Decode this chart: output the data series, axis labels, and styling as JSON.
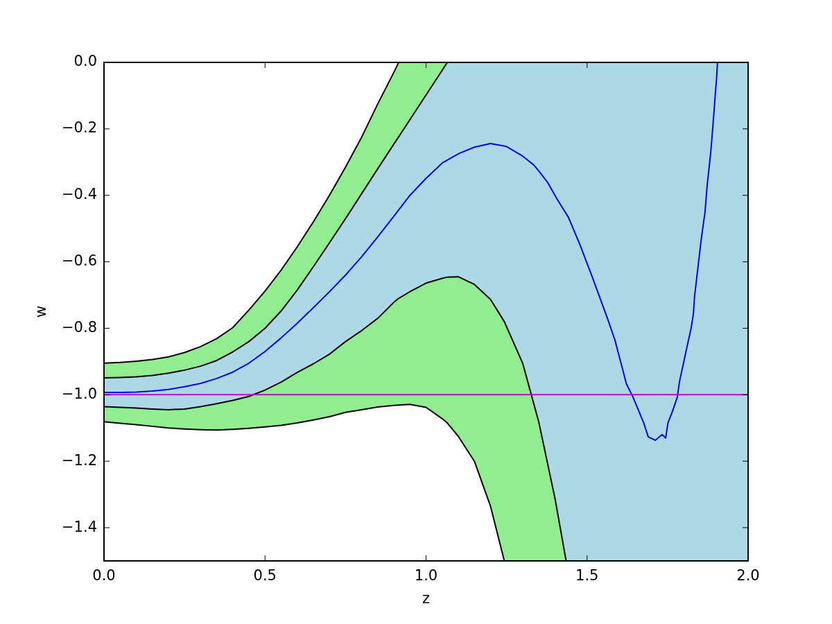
{
  "chart_data": {
    "type": "line",
    "xlabel": "z",
    "ylabel": "w",
    "xlim": [
      0,
      2
    ],
    "ylim": [
      -1.5,
      0
    ],
    "xticks": [
      {
        "value": 0,
        "label": "0.0"
      },
      {
        "value": 0.5,
        "label": "0.5"
      },
      {
        "value": 1,
        "label": "1.0"
      },
      {
        "value": 1.5,
        "label": "1.5"
      },
      {
        "value": 2,
        "label": "2.0"
      }
    ],
    "yticks": [
      {
        "value": -1.4,
        "label": "−1.4"
      },
      {
        "value": -1.2,
        "label": "−1.2"
      },
      {
        "value": -1,
        "label": "−1.0"
      },
      {
        "value": -0.8,
        "label": "−0.8"
      },
      {
        "value": -0.6,
        "label": "−0.6"
      },
      {
        "value": -0.4,
        "label": "−0.4"
      },
      {
        "value": -0.2,
        "label": "−0.2"
      },
      {
        "value": 0,
        "label": "0.0"
      }
    ],
    "x": [
      0,
      0.05,
      0.1,
      0.15,
      0.2,
      0.25,
      0.3,
      0.35,
      0.4,
      0.45,
      0.5,
      0.55,
      0.6,
      0.65,
      0.7,
      0.75,
      0.8,
      0.85,
      0.9,
      0.915,
      0.95,
      1.0,
      1.05,
      1.066,
      1.1,
      1.15,
      1.2,
      1.243,
      1.3,
      1.35,
      1.4,
      1.435,
      2.0
    ],
    "series": [
      {
        "color": "#90ee90",
        "values": [
          null,
          null,
          null,
          null,
          null,
          null,
          null,
          null,
          null,
          null,
          null,
          null,
          null,
          null,
          null,
          null,
          null,
          null,
          null,
          null,
          null,
          null,
          null,
          null,
          null,
          null,
          null,
          null,
          null,
          null,
          null,
          null,
          null
        ],
        "upper": [
          -0.905,
          -0.903,
          -0.899,
          -0.894,
          -0.886,
          -0.873,
          -0.855,
          -0.831,
          -0.798,
          -0.745,
          -0.688,
          -0.625,
          -0.555,
          -0.48,
          -0.4,
          -0.315,
          -0.225,
          -0.125,
          -0.03,
          0,
          0,
          0,
          0,
          0,
          0,
          0,
          0,
          0,
          0,
          0,
          0,
          0,
          0
        ],
        "lower": [
          -0.949,
          -0.948,
          -0.946,
          -0.942,
          -0.935,
          -0.926,
          -0.914,
          -0.897,
          -0.871,
          -0.84,
          -0.8,
          -0.748,
          -0.685,
          -0.615,
          -0.543,
          -0.47,
          -0.395,
          -0.32,
          -0.246,
          -0.224,
          -0.172,
          -0.098,
          -0.024,
          0,
          0,
          0,
          0,
          0,
          0,
          0,
          0,
          0,
          0
        ]
      },
      {
        "color": "#add8e6",
        "values": [
          null,
          null,
          null,
          null,
          null,
          null,
          null,
          null,
          null,
          null,
          null,
          null,
          null,
          null,
          null,
          null,
          null,
          null,
          null,
          null,
          null,
          null,
          null,
          null,
          null,
          null,
          null,
          null,
          null,
          null,
          null,
          null,
          null
        ],
        "upper": [
          -0.949,
          -0.948,
          -0.946,
          -0.942,
          -0.935,
          -0.926,
          -0.914,
          -0.897,
          -0.871,
          -0.84,
          -0.8,
          -0.748,
          -0.685,
          -0.615,
          -0.543,
          -0.47,
          -0.395,
          -0.32,
          -0.246,
          -0.224,
          -0.172,
          -0.098,
          -0.024,
          0,
          0,
          0,
          0,
          0,
          0,
          0,
          0,
          0,
          0
        ],
        "lower": [
          -1.036,
          -1.038,
          -1.04,
          -1.043,
          -1.045,
          -1.043,
          -1.036,
          -1.027,
          -1.017,
          -1.005,
          -0.986,
          -0.962,
          -0.933,
          -0.907,
          -0.878,
          -0.84,
          -0.807,
          -0.77,
          -0.722,
          -0.71,
          -0.69,
          -0.664,
          -0.65,
          -0.646,
          -0.645,
          -0.668,
          -0.713,
          -0.78,
          -0.905,
          -1.082,
          -1.31,
          -1.5,
          -1.5
        ]
      },
      {
        "color": "#90ee90",
        "values": [
          null,
          null,
          null,
          null,
          null,
          null,
          null,
          null,
          null,
          null,
          null,
          null,
          null,
          null,
          null,
          null,
          null,
          null,
          null,
          null,
          null,
          null,
          null,
          null,
          null,
          null,
          null,
          null,
          null,
          null,
          null,
          null,
          null
        ],
        "upper": [
          -1.036,
          -1.038,
          -1.04,
          -1.043,
          -1.045,
          -1.043,
          -1.036,
          -1.027,
          -1.017,
          -1.005,
          -0.986,
          -0.962,
          -0.933,
          -0.907,
          -0.878,
          -0.84,
          -0.807,
          -0.77,
          -0.722,
          -0.71,
          -0.69,
          -0.664,
          -0.65,
          -0.646,
          -0.645,
          -0.668,
          -0.713,
          -0.78,
          -0.905,
          -1.082,
          -1.31,
          -1.5,
          -1.5
        ],
        "lower": [
          -1.081,
          -1.086,
          -1.09,
          -1.095,
          -1.1,
          -1.103,
          -1.105,
          -1.106,
          -1.104,
          -1.101,
          -1.097,
          -1.092,
          -1.085,
          -1.076,
          -1.066,
          -1.053,
          -1.045,
          -1.037,
          -1.032,
          -1.031,
          -1.029,
          -1.038,
          -1.072,
          -1.085,
          -1.125,
          -1.2,
          -1.335,
          -1.5,
          -1.5,
          -1.5,
          -1.5,
          -1.5,
          -1.5
        ]
      },
      {
        "color": "#000000",
        "values": [
          -0.905,
          -0.903,
          -0.899,
          -0.894,
          -0.886,
          -0.873,
          -0.855,
          -0.831,
          -0.798,
          -0.745,
          -0.688,
          -0.625,
          -0.555,
          -0.48,
          -0.4,
          -0.315,
          -0.225,
          -0.125,
          -0.03,
          0,
          null,
          null,
          null,
          null,
          null,
          null,
          null,
          null,
          null,
          null,
          null,
          null,
          null
        ]
      },
      {
        "color": "#000000",
        "values": [
          -0.949,
          -0.948,
          -0.946,
          -0.942,
          -0.935,
          -0.926,
          -0.914,
          -0.897,
          -0.871,
          -0.84,
          -0.8,
          -0.748,
          -0.685,
          -0.615,
          -0.543,
          -0.47,
          -0.395,
          -0.32,
          -0.246,
          -0.224,
          -0.172,
          -0.098,
          -0.024,
          0,
          null,
          null,
          null,
          null,
          null,
          null,
          null,
          null,
          null
        ]
      },
      {
        "color": "#000000",
        "values": [
          -1.036,
          -1.038,
          -1.04,
          -1.043,
          -1.045,
          -1.043,
          -1.036,
          -1.027,
          -1.017,
          -1.005,
          -0.986,
          -0.962,
          -0.933,
          -0.907,
          -0.878,
          -0.84,
          -0.807,
          -0.77,
          -0.722,
          -0.71,
          -0.69,
          -0.664,
          -0.65,
          -0.646,
          -0.645,
          -0.668,
          -0.713,
          -0.78,
          -0.905,
          -1.082,
          -1.31,
          -1.5,
          null
        ]
      },
      {
        "color": "#000000",
        "values": [
          -1.081,
          -1.086,
          -1.09,
          -1.095,
          -1.1,
          -1.103,
          -1.105,
          -1.106,
          -1.104,
          -1.101,
          -1.097,
          -1.092,
          -1.085,
          -1.076,
          -1.066,
          -1.053,
          -1.045,
          -1.037,
          -1.032,
          -1.031,
          -1.029,
          -1.038,
          -1.072,
          -1.085,
          -1.125,
          -1.2,
          -1.335,
          -1.5,
          null,
          null,
          null,
          null,
          null
        ]
      },
      {
        "color": "#0000ff",
        "x": [
          0,
          0.05,
          0.1,
          0.15,
          0.2,
          0.25,
          0.3,
          0.35,
          0.4,
          0.45,
          0.5,
          0.55,
          0.6,
          0.65,
          0.7,
          0.75,
          0.8,
          0.85,
          0.9,
          0.95,
          1.0,
          1.05,
          1.1,
          1.15,
          1.2,
          1.25,
          1.3,
          1.335,
          1.356,
          1.378,
          1.406,
          1.442,
          1.478,
          1.514,
          1.55,
          1.564,
          1.586,
          1.607,
          1.622,
          1.643,
          1.661,
          1.676,
          1.69,
          1.712,
          1.733,
          1.744,
          1.751,
          1.765,
          1.78,
          1.787,
          1.798,
          1.812,
          1.823,
          1.83,
          1.834,
          1.844,
          1.855,
          1.866,
          1.873,
          1.884,
          1.891,
          1.898,
          1.902,
          1.905
        ],
        "values": [
          -0.993,
          -0.993,
          -0.992,
          -0.989,
          -0.984,
          -0.976,
          -0.966,
          -0.951,
          -0.932,
          -0.905,
          -0.87,
          -0.829,
          -0.785,
          -0.738,
          -0.69,
          -0.64,
          -0.585,
          -0.525,
          -0.463,
          -0.4,
          -0.349,
          -0.303,
          -0.275,
          -0.255,
          -0.244,
          -0.253,
          -0.282,
          -0.309,
          -0.334,
          -0.362,
          -0.41,
          -0.466,
          -0.549,
          -0.64,
          -0.735,
          -0.772,
          -0.834,
          -0.911,
          -0.967,
          -1.008,
          -1.05,
          -1.085,
          -1.127,
          -1.137,
          -1.12,
          -1.13,
          -1.085,
          -1.05,
          -1.008,
          -0.96,
          -0.911,
          -0.848,
          -0.8,
          -0.758,
          -0.702,
          -0.619,
          -0.528,
          -0.452,
          -0.369,
          -0.271,
          -0.188,
          -0.097,
          -0.049,
          0
        ]
      }
    ],
    "ref_lines": [
      {
        "axis": "y",
        "value": -1,
        "color": "#bf00bf"
      }
    ]
  }
}
